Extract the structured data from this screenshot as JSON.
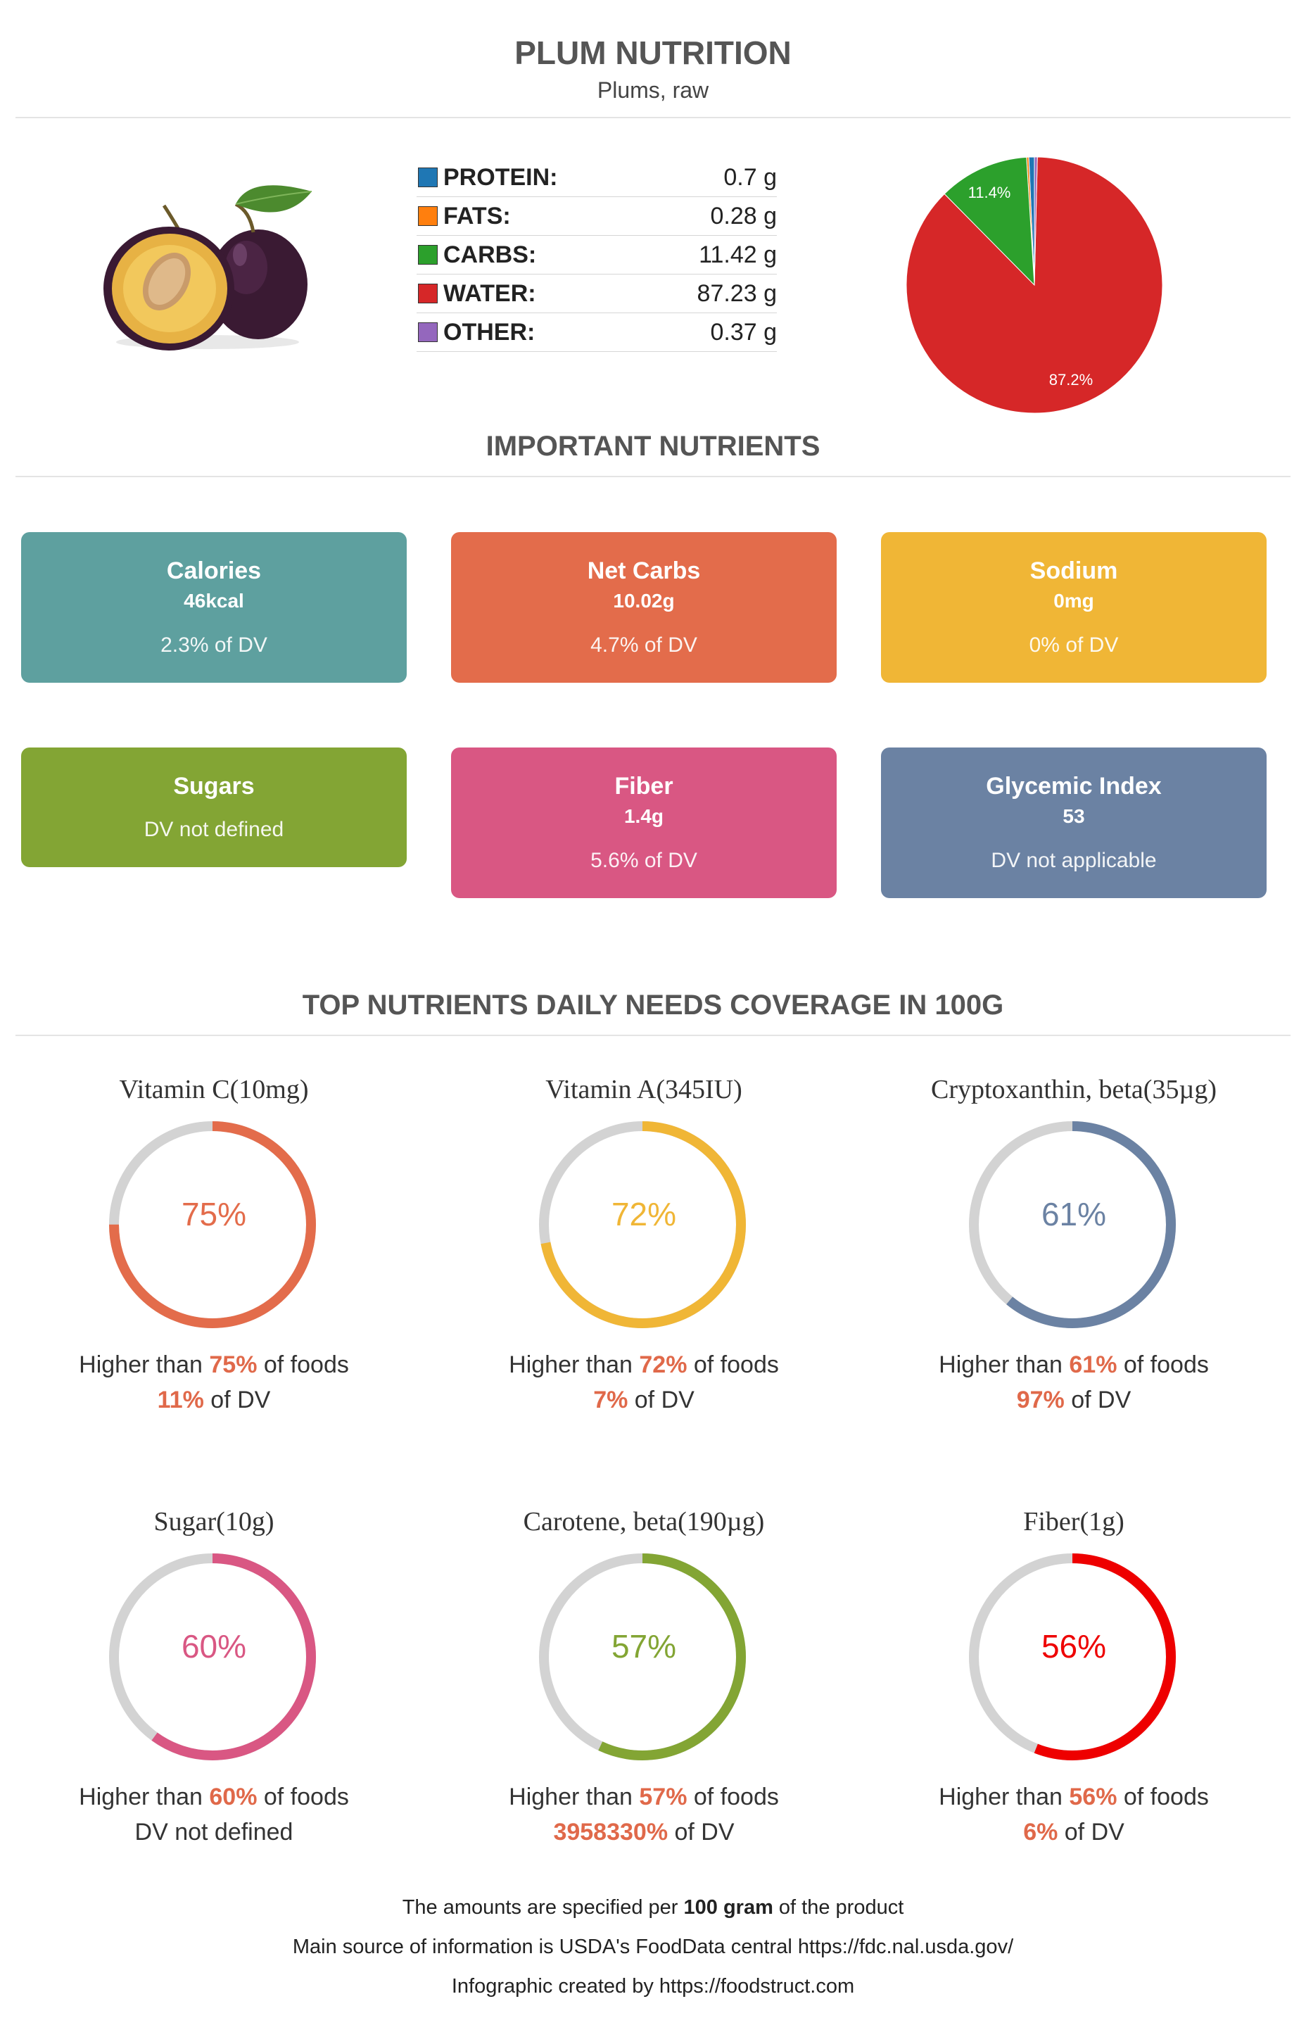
{
  "header": {
    "title": "PLUM NUTRITION",
    "subtitle": "Plums, raw"
  },
  "image": {
    "name": "plum-image"
  },
  "macros": [
    {
      "label": "PROTEIN:",
      "value": "0.7 g",
      "color": "#1f77b4"
    },
    {
      "label": "FATS:",
      "value": "0.28 g",
      "color": "#ff7f0e"
    },
    {
      "label": "CARBS:",
      "value": "11.42 g",
      "color": "#2ca02c"
    },
    {
      "label": "WATER:",
      "value": "87.23 g",
      "color": "#d62728"
    },
    {
      "label": "OTHER:",
      "value": "0.37 g",
      "color": "#9467bd"
    }
  ],
  "chart_data": {
    "type": "pie",
    "categories": [
      "Protein",
      "Fats",
      "Carbs",
      "Water",
      "Other"
    ],
    "values": [
      0.7,
      0.28,
      11.42,
      87.23,
      0.37
    ],
    "colors": [
      "#1f77b4",
      "#ff7f0e",
      "#2ca02c",
      "#d62728",
      "#9467bd"
    ],
    "slice_labels": {
      "carbs": "11.4%",
      "water": "87.2%"
    }
  },
  "section_important": {
    "title": "IMPORTANT NUTRIENTS"
  },
  "cards": [
    {
      "name": "Calories",
      "amount": "46kcal",
      "dv": "2.3% of DV",
      "color": "#5ea09f"
    },
    {
      "name": "Net Carbs",
      "amount": "10.02g",
      "dv": "4.7% of DV",
      "color": "#e36c4b"
    },
    {
      "name": "Sodium",
      "amount": "0mg",
      "dv": "0% of DV",
      "color": "#f0b636"
    },
    {
      "name": "Sugars",
      "amount": "",
      "dv": "DV not defined",
      "color": "#83a534"
    },
    {
      "name": "Fiber",
      "amount": "1.4g",
      "dv": "5.6% of DV",
      "color": "#d95783"
    },
    {
      "name": "Glycemic Index",
      "amount": "53",
      "dv": "DV not applicable",
      "color": "#6b82a3"
    }
  ],
  "section_coverage": {
    "title": "TOP NUTRIENTS DAILY NEEDS COVERAGE IN 100G"
  },
  "donuts": [
    {
      "name": "Vitamin C(10mg)",
      "pct": 75,
      "pct_label": "75%",
      "higher_pre": "Higher than ",
      "higher_val": "75%",
      "higher_post": " of foods",
      "dv_val": "11%",
      "dv_post": " of DV",
      "color": "#e36c4b"
    },
    {
      "name": "Vitamin A(345IU)",
      "pct": 72,
      "pct_label": "72%",
      "higher_pre": "Higher than ",
      "higher_val": "72%",
      "higher_post": " of foods",
      "dv_val": "7%",
      "dv_post": " of DV",
      "color": "#f0b636"
    },
    {
      "name": "Cryptoxanthin, beta(35µg)",
      "pct": 61,
      "pct_label": "61%",
      "higher_pre": "Higher than ",
      "higher_val": "61%",
      "higher_post": " of foods",
      "dv_val": "97%",
      "dv_post": " of DV",
      "color": "#6b82a3"
    },
    {
      "name": "Sugar(10g)",
      "pct": 60,
      "pct_label": "60%",
      "higher_pre": "Higher than ",
      "higher_val": "60%",
      "higher_post": " of foods",
      "dv_val": "",
      "dv_post": "DV not defined",
      "color": "#d95783"
    },
    {
      "name": "Carotene, beta(190µg)",
      "pct": 57,
      "pct_label": "57%",
      "higher_pre": "Higher than ",
      "higher_val": "57%",
      "higher_post": " of foods",
      "dv_val": "3958330%",
      "dv_post": " of DV",
      "color": "#83a534"
    },
    {
      "name": "Fiber(1g)",
      "pct": 56,
      "pct_label": "56%",
      "higher_pre": "Higher than ",
      "higher_val": "56%",
      "higher_post": " of foods",
      "dv_val": "6%",
      "dv_post": " of DV",
      "color": "#ee0000"
    }
  ],
  "footer": {
    "line1_pre": "The amounts are specified per ",
    "line1_bold": "100 gram",
    "line1_post": " of the product",
    "line2": "Main source of information is USDA's FoodData central https://fdc.nal.usda.gov/",
    "line3": "Infographic created by https://foodstruct.com"
  }
}
